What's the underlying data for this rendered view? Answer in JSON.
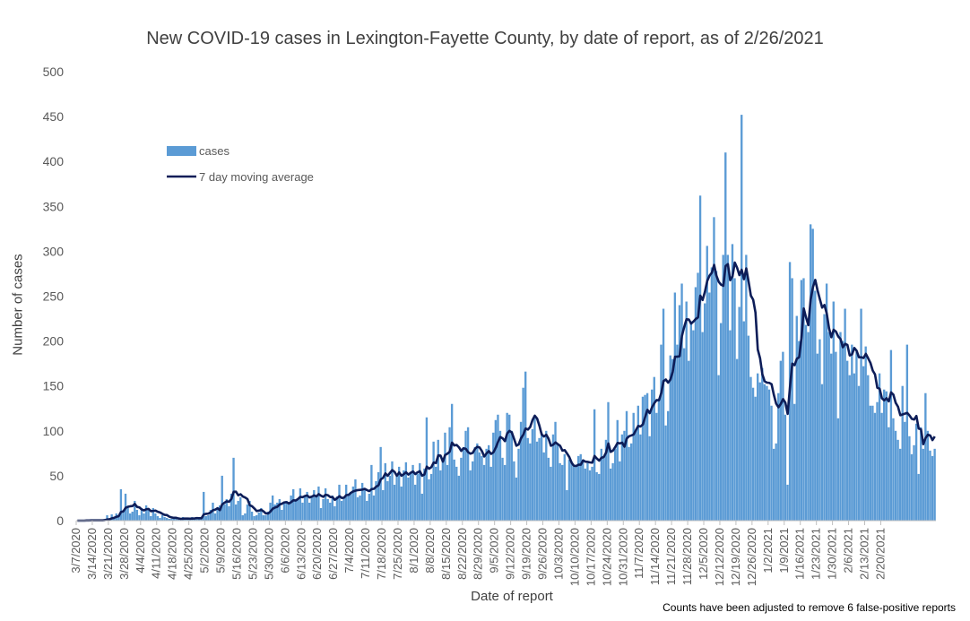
{
  "chart_data": {
    "type": "bar",
    "title": "New COVID-19 cases in Lexington-Fayette County, by date of report, as of 2/26/2021",
    "xlabel": "Date of report",
    "ylabel": "Number of cases",
    "ylim": [
      0,
      500
    ],
    "yticks": [
      0,
      50,
      100,
      150,
      200,
      250,
      300,
      350,
      400,
      450,
      500
    ],
    "grid": false,
    "legend_position": "top-left",
    "start_date": "3/7/2020",
    "end_date": "2/26/2021",
    "xtick_labels": [
      "3/7/2020",
      "3/14/2020",
      "3/21/2020",
      "3/28/2020",
      "4/4/2020",
      "4/11/2020",
      "4/18/2020",
      "4/25/2020",
      "5/2/2020",
      "5/9/2020",
      "5/16/2020",
      "5/23/2020",
      "5/30/2020",
      "6/6/2020",
      "6/13/2020",
      "6/20/2020",
      "6/27/2020",
      "7/4/2020",
      "7/11/2020",
      "7/18/2020",
      "7/25/2020",
      "8/1/2020",
      "8/8/2020",
      "8/15/2020",
      "8/22/2020",
      "8/29/2020",
      "9/5/2020",
      "9/12/2020",
      "9/19/2020",
      "9/26/2020",
      "10/3/2020",
      "10/10/2020",
      "10/17/2020",
      "10/24/2020",
      "10/31/2020",
      "11/7/2020",
      "11/14/2020",
      "11/21/2020",
      "11/28/2020",
      "12/5/2020",
      "12/12/2020",
      "12/19/2020",
      "12/26/2020",
      "1/2/2021",
      "1/9/2021",
      "1/16/2021",
      "1/23/2021",
      "1/30/2021",
      "2/6/2021",
      "2/13/2021",
      "2/20/2021"
    ],
    "series": [
      {
        "name": "cases",
        "color": "#5b9bd5",
        "values": [
          0,
          0,
          0,
          0,
          1,
          0,
          1,
          0,
          0,
          0,
          0,
          1,
          2,
          6,
          2,
          7,
          4,
          8,
          6,
          35,
          10,
          30,
          15,
          8,
          10,
          22,
          12,
          6,
          14,
          8,
          17,
          12,
          5,
          14,
          8,
          5,
          3,
          6,
          4,
          3,
          2,
          2,
          2,
          3,
          1,
          1,
          4,
          3,
          2,
          1,
          4,
          2,
          4,
          3,
          3,
          32,
          5,
          6,
          12,
          20,
          8,
          14,
          17,
          50,
          18,
          24,
          16,
          30,
          70,
          18,
          22,
          26,
          6,
          8,
          18,
          22,
          10,
          5,
          6,
          9,
          14,
          6,
          6,
          10,
          20,
          28,
          18,
          20,
          24,
          12,
          20,
          22,
          18,
          28,
          35,
          22,
          24,
          36,
          20,
          27,
          32,
          20,
          28,
          34,
          28,
          38,
          14,
          24,
          36,
          24,
          20,
          28,
          16,
          27,
          40,
          22,
          26,
          40,
          30,
          32,
          38,
          46,
          26,
          28,
          42,
          36,
          22,
          30,
          62,
          28,
          44,
          54,
          82,
          34,
          64,
          44,
          50,
          66,
          40,
          52,
          60,
          38,
          56,
          65,
          48,
          54,
          62,
          40,
          52,
          64,
          30,
          58,
          115,
          46,
          52,
          88,
          60,
          90,
          56,
          68,
          98,
          62,
          104,
          130,
          68,
          60,
          50,
          70,
          82,
          100,
          104,
          56,
          66,
          82,
          86,
          76,
          72,
          62,
          80,
          84,
          60,
          98,
          112,
          118,
          100,
          70,
          62,
          120,
          118,
          100,
          66,
          48,
          80,
          110,
          148,
          166,
          92,
          86,
          102,
          114,
          88,
          92,
          98,
          76,
          100,
          70,
          60,
          96,
          110,
          84,
          64,
          62,
          74,
          34,
          68,
          66,
          60,
          62,
          72,
          74,
          68,
          58,
          64,
          56,
          60,
          124,
          54,
          52,
          80,
          70,
          90,
          132,
          58,
          64,
          80,
          112,
          66,
          96,
          100,
          122,
          82,
          86,
          120,
          100,
          128,
          96,
          138,
          140,
          142,
          94,
          146,
          160,
          120,
          136,
          196,
          236,
          106,
          122,
          184,
          180,
          254,
          196,
          240,
          264,
          192,
          244,
          178,
          222,
          212,
          260,
          276,
          362,
          210,
          242,
          306,
          254,
          282,
          338,
          278,
          162,
          220,
          296,
          410,
          296,
          212,
          308,
          270,
          180,
          238,
          452,
          222,
          296,
          206,
          160,
          148,
          138,
          164,
          154,
          170,
          152,
          150,
          146,
          128,
          80,
          86,
          142,
          178,
          188,
          118,
          40,
          288,
          270,
          130,
          228,
          200,
          268,
          270,
          218,
          210,
          330,
          325,
          256,
          186,
          202,
          152,
          230,
          264,
          210,
          186,
          244,
          188,
          114,
          210,
          200,
          236,
          178,
          162,
          196,
          164,
          188,
          150,
          236,
          172,
          194,
          162,
          128,
          128,
          120,
          132,
          164,
          120,
          146,
          144,
          104,
          190,
          114,
          100,
          90,
          80,
          150,
          110,
          196,
          94,
          74,
          84,
          108,
          52,
          104,
          80,
          142,
          100,
          78,
          72,
          80
        ]
      },
      {
        "name": "7 day moving average",
        "color": "#0d1d58"
      }
    ]
  },
  "legend": {
    "cases_label": "cases",
    "avg_label": "7 day moving average"
  },
  "footnote": "Counts have been adjusted to remove 6 false-positive reports"
}
